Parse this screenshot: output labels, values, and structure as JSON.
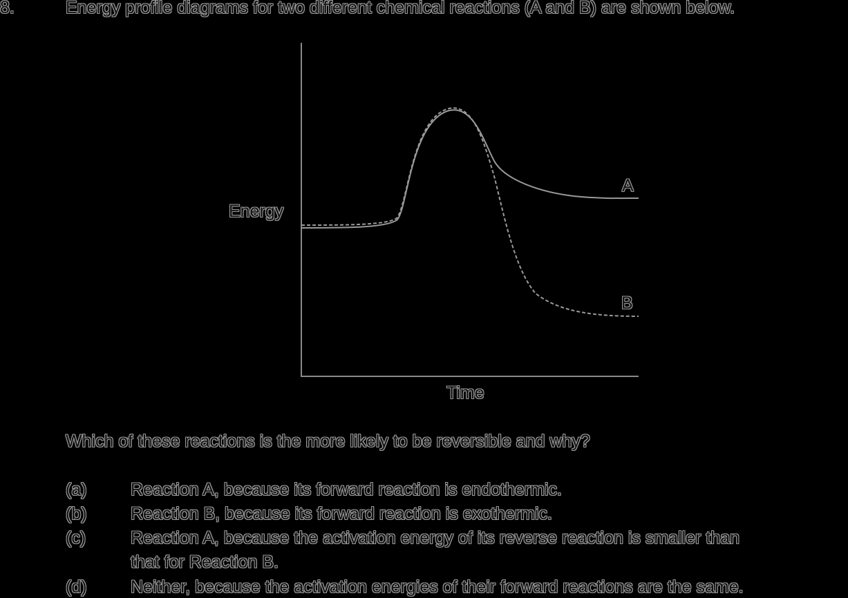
{
  "question": {
    "number": "8.",
    "stem": "Energy profile diagrams for two different chemical reactions (A and B) are shown below.",
    "prompt": "Which of these reactions is the more likely to be reversible and why?"
  },
  "diagram": {
    "y_label": "Energy",
    "x_label": "Time",
    "curve_a_label": "A",
    "curve_b_label": "B",
    "colors": {
      "background": "#000000",
      "line": "#9a9a9a",
      "text": "#111111"
    }
  },
  "options": [
    {
      "letter": "(a)",
      "lines": [
        "Reaction A, because its forward reaction is endothermic."
      ]
    },
    {
      "letter": "(b)",
      "lines": [
        "Reaction B, because its forward reaction is exothermic."
      ]
    },
    {
      "letter": "(c)",
      "lines": [
        "Reaction A, because the activation energy of its reverse reaction is smaller than",
        "that for Reaction B."
      ]
    },
    {
      "letter": "(d)",
      "lines": [
        "Neither, because the activation energies of their forward reactions are the same."
      ]
    }
  ]
}
